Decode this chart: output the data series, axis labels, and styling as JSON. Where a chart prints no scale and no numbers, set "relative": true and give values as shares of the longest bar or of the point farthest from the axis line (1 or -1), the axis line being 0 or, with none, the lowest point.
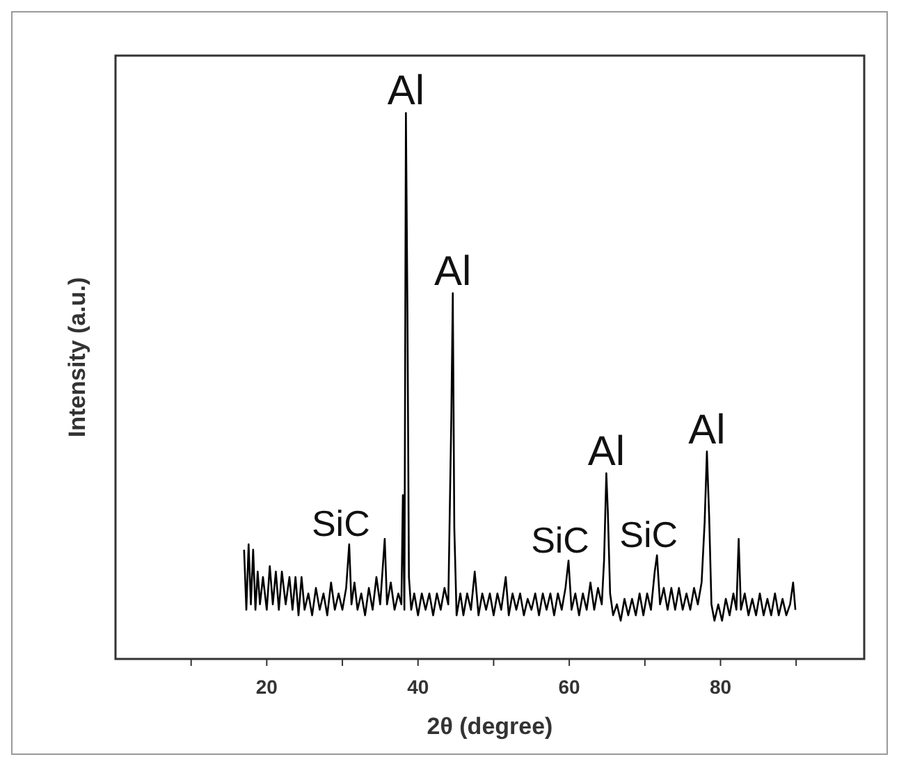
{
  "chart_data": {
    "type": "line",
    "relative": true,
    "xlabel": "2θ (degree)",
    "ylabel": "Intensity (a.u.)",
    "xlim": [
      0,
      99
    ],
    "xticks": [
      {
        "value": 10,
        "label": null
      },
      20,
      {
        "value": 30,
        "label": null
      },
      40,
      {
        "value": 50,
        "label": null
      },
      60,
      {
        "value": 70,
        "label": null
      },
      80,
      {
        "value": 90,
        "label": null
      }
    ],
    "grid": false,
    "marker": "none",
    "line_style": "solid",
    "annotations": [
      {
        "text": "Al",
        "x": 38.4,
        "y": 1.0
      },
      {
        "text": "Al",
        "x": 44.6,
        "y": 0.67
      },
      {
        "text": "Al",
        "x": 64.9,
        "y": 0.34
      },
      {
        "text": "Al",
        "x": 78.2,
        "y": 0.38
      },
      {
        "text": "SiC",
        "x": 30.9,
        "y": 0.21
      },
      {
        "text": "SiC",
        "x": 59.9,
        "y": 0.18
      },
      {
        "text": "SiC",
        "x": 71.6,
        "y": 0.19
      }
    ],
    "series": [
      {
        "color": "#000000",
        "x": [
          17,
          17.3,
          17.6,
          17.9,
          18.2,
          18.5,
          18.8,
          19.1,
          19.5,
          20,
          20.4,
          20.8,
          21.2,
          21.6,
          22,
          22.5,
          23,
          23.4,
          23.8,
          24.2,
          24.6,
          25,
          25.5,
          26,
          26.5,
          27,
          27.5,
          28,
          28.5,
          29,
          29.5,
          30,
          30.5,
          30.9,
          31.2,
          31.6,
          32,
          32.5,
          33,
          33.5,
          34,
          34.5,
          35,
          35.6,
          35.9,
          36.4,
          36.9,
          37.4,
          37.8,
          38.0,
          38.2,
          38.4,
          38.6,
          38.8,
          39.1,
          39.5,
          40,
          40.5,
          41,
          41.5,
          42,
          42.5,
          43,
          43.5,
          44,
          44.4,
          44.6,
          44.8,
          45.1,
          45.6,
          46,
          46.5,
          47,
          47.5,
          48,
          48.5,
          49,
          49.5,
          50,
          50.5,
          51,
          51.6,
          52,
          52.5,
          53,
          53.5,
          54,
          54.5,
          55,
          55.5,
          56,
          56.5,
          57,
          57.5,
          58,
          58.5,
          59,
          59.5,
          59.9,
          60.3,
          60.8,
          61.3,
          61.8,
          62.3,
          62.8,
          63.3,
          63.8,
          64.3,
          64.6,
          64.9,
          65.1,
          65.4,
          65.8,
          66.3,
          66.8,
          67.3,
          67.8,
          68.3,
          68.8,
          69.3,
          69.8,
          70.3,
          70.8,
          71.3,
          71.6,
          72,
          72.5,
          73,
          73.5,
          74,
          74.5,
          75,
          75.5,
          76,
          76.5,
          77,
          77.5,
          77.9,
          78.2,
          78.5,
          78.8,
          79.2,
          79.7,
          80.2,
          80.7,
          81.2,
          81.7,
          82.1,
          82.4,
          82.7,
          83.2,
          83.7,
          84.2,
          84.7,
          85.2,
          85.7,
          86.2,
          86.7,
          87.2,
          87.7,
          88.2,
          88.7,
          89.2,
          89.6,
          89.9
        ],
        "values": [
          0.2,
          0.09,
          0.21,
          0.1,
          0.2,
          0.09,
          0.16,
          0.1,
          0.15,
          0.09,
          0.17,
          0.1,
          0.16,
          0.09,
          0.16,
          0.1,
          0.15,
          0.09,
          0.15,
          0.08,
          0.15,
          0.09,
          0.12,
          0.08,
          0.13,
          0.09,
          0.12,
          0.08,
          0.14,
          0.09,
          0.12,
          0.09,
          0.13,
          0.21,
          0.1,
          0.14,
          0.09,
          0.12,
          0.08,
          0.13,
          0.09,
          0.15,
          0.1,
          0.22,
          0.1,
          0.14,
          0.09,
          0.12,
          0.1,
          0.3,
          0.09,
          1.0,
          0.64,
          0.15,
          0.09,
          0.12,
          0.08,
          0.12,
          0.09,
          0.12,
          0.08,
          0.12,
          0.09,
          0.13,
          0.1,
          0.44,
          0.67,
          0.24,
          0.08,
          0.12,
          0.08,
          0.12,
          0.09,
          0.16,
          0.08,
          0.12,
          0.09,
          0.12,
          0.08,
          0.12,
          0.09,
          0.15,
          0.08,
          0.12,
          0.09,
          0.12,
          0.08,
          0.11,
          0.09,
          0.12,
          0.08,
          0.12,
          0.09,
          0.12,
          0.08,
          0.12,
          0.09,
          0.13,
          0.18,
          0.09,
          0.12,
          0.08,
          0.12,
          0.09,
          0.14,
          0.09,
          0.13,
          0.1,
          0.18,
          0.34,
          0.27,
          0.12,
          0.08,
          0.1,
          0.07,
          0.11,
          0.08,
          0.11,
          0.08,
          0.12,
          0.08,
          0.12,
          0.09,
          0.16,
          0.19,
          0.1,
          0.13,
          0.09,
          0.13,
          0.09,
          0.13,
          0.09,
          0.12,
          0.09,
          0.13,
          0.1,
          0.14,
          0.25,
          0.38,
          0.26,
          0.1,
          0.07,
          0.1,
          0.07,
          0.11,
          0.08,
          0.12,
          0.09,
          0.22,
          0.09,
          0.12,
          0.08,
          0.11,
          0.08,
          0.12,
          0.08,
          0.11,
          0.08,
          0.12,
          0.08,
          0.11,
          0.08,
          0.1,
          0.14,
          0.09
        ]
      }
    ]
  }
}
